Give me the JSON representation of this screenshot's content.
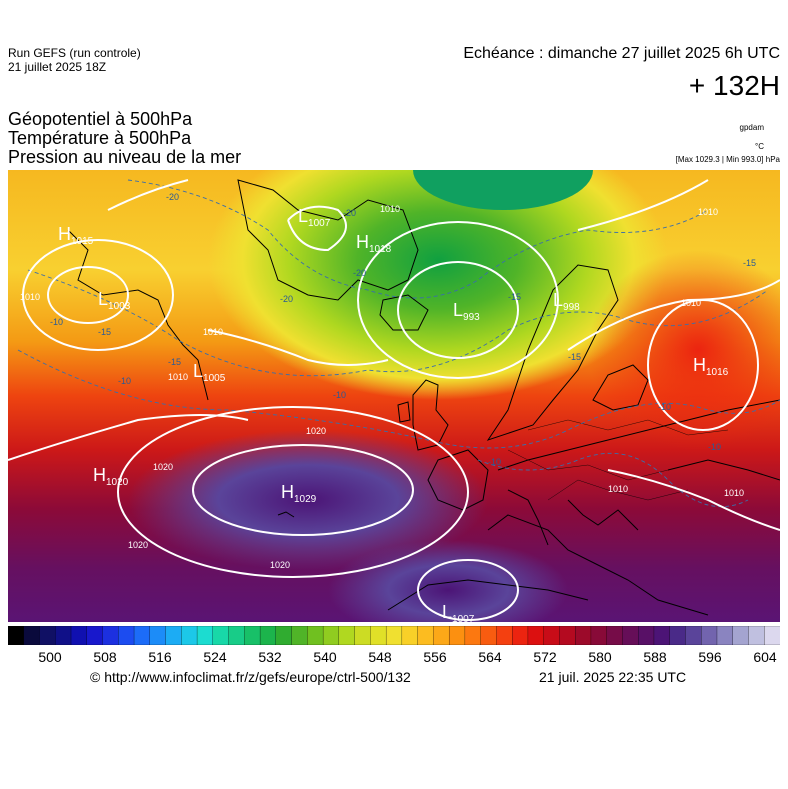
{
  "header": {
    "run_name": "Run GEFS (run controle)",
    "run_date": "21 juillet 2025 18Z",
    "echeance": "Echéance : dimanche 27 juillet 2025 6h UTC",
    "horizon": "+ 132H"
  },
  "fields": {
    "line1": "Géopotentiel à 500hPa",
    "line2": "Température à 500hPa",
    "line3": "Pression au niveau de la mer"
  },
  "units": {
    "geopotential": "gpdam",
    "temperature": "°C",
    "pressure": "[Max 1029.3 | Min 993.0] hPa"
  },
  "pressure_centers": [
    {
      "kind": "H",
      "value": "1015"
    },
    {
      "kind": "L",
      "value": "1003"
    },
    {
      "kind": "L",
      "value": "1007"
    },
    {
      "kind": "H",
      "value": "1018"
    },
    {
      "kind": "L",
      "value": "993"
    },
    {
      "kind": "L",
      "value": "998"
    },
    {
      "kind": "H",
      "value": "1016"
    },
    {
      "kind": "L",
      "value": "1005"
    },
    {
      "kind": "H",
      "value": "1020"
    },
    {
      "kind": "H",
      "value": "1029"
    },
    {
      "kind": "L",
      "value": "1007"
    }
  ],
  "isobar_labels": [
    "1010",
    "1010",
    "1010",
    "1010",
    "1010",
    "1020",
    "1020",
    "1020",
    "1020",
    "1010",
    "1010",
    "1010"
  ],
  "isotherm_labels": [
    "-20",
    "-20",
    "-20",
    "-20",
    "-15",
    "-10",
    "-10",
    "-15",
    "-15",
    "-10",
    "-10",
    "-15",
    "-10",
    "-10",
    "-15"
  ],
  "colorbar": {
    "ticks": [
      "500",
      "508",
      "516",
      "524",
      "532",
      "540",
      "548",
      "556",
      "564",
      "572",
      "580",
      "588",
      "596",
      "604"
    ],
    "colors": [
      "#000000",
      "#0a0a3c",
      "#101064",
      "#101088",
      "#1010b0",
      "#1818cc",
      "#1c30e0",
      "#1c4cf0",
      "#1c6cf8",
      "#1c8cf8",
      "#1cacf4",
      "#1cc8e8",
      "#1cdcd0",
      "#18d8a8",
      "#18cc88",
      "#18c068",
      "#1cb44c",
      "#30ac30",
      "#50b428",
      "#70c020",
      "#90cc20",
      "#b0d820",
      "#ccdc24",
      "#e0e028",
      "#f0e030",
      "#f8d028",
      "#fcbc20",
      "#fca818",
      "#fc9010",
      "#fc7810",
      "#f85c10",
      "#f44010",
      "#ec2410",
      "#dc1010",
      "#c80c18",
      "#b40a20",
      "#9c0a2a",
      "#880a38",
      "#760c48",
      "#660e58",
      "#581066",
      "#4c1476",
      "#4a2a88",
      "#5a449a",
      "#7264ae",
      "#8a84c0",
      "#a4a4d0",
      "#c0c0e0",
      "#dcd8ee"
    ]
  },
  "footer": {
    "credit": "© http://www.infoclimat.fr/z/gefs/europe/ctrl-500/132",
    "timestamp": "21 juil. 2025 22:35 UTC"
  }
}
